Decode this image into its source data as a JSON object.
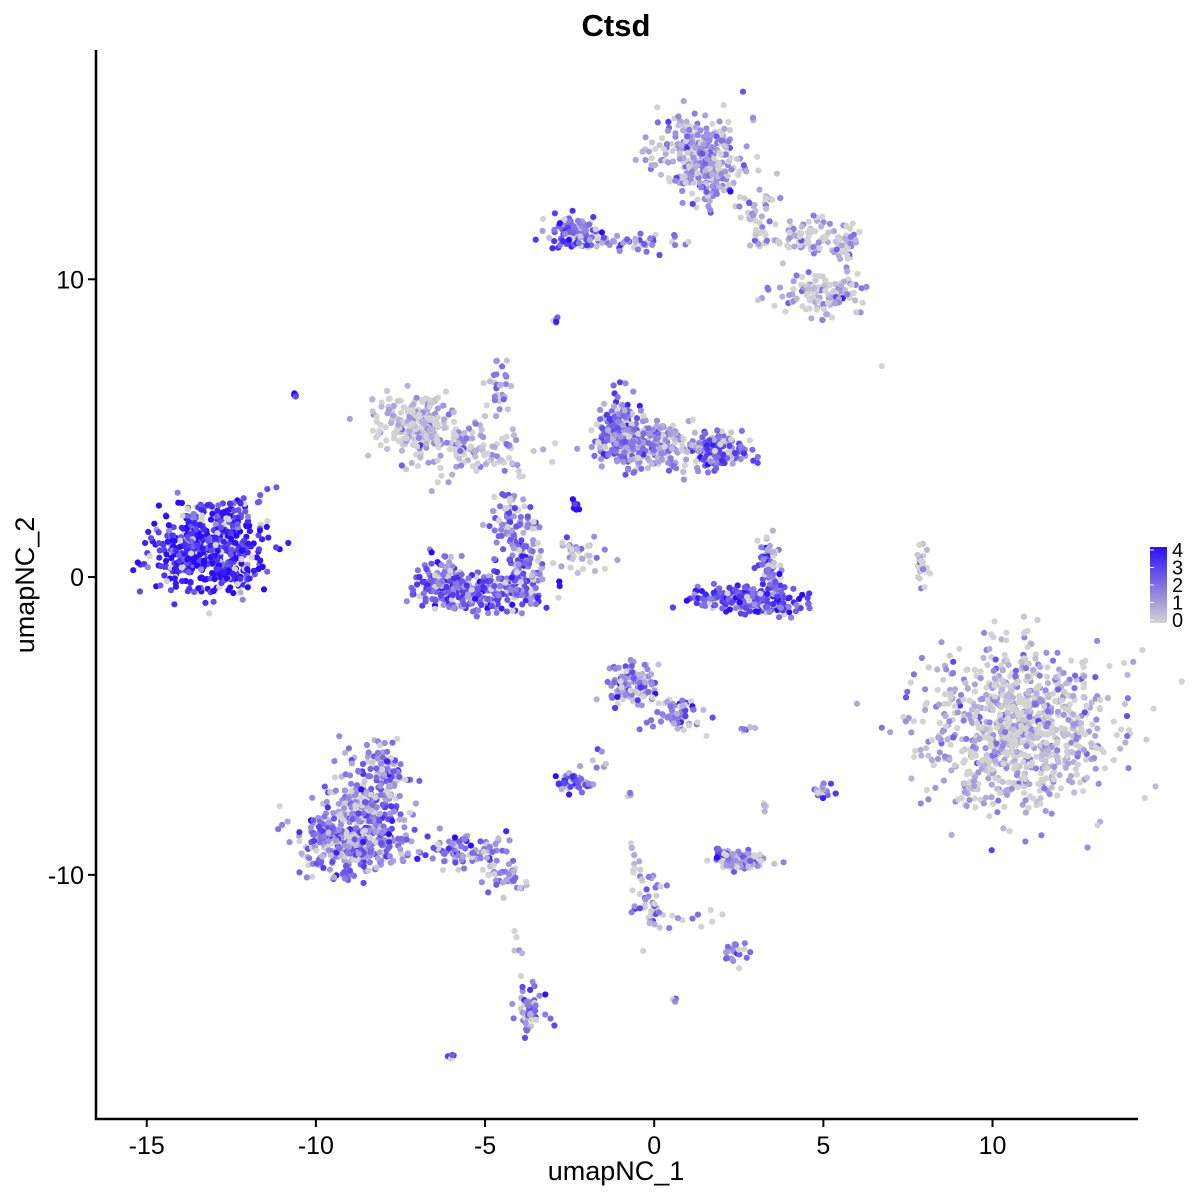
{
  "chart_data": {
    "type": "scatter",
    "title": "Ctsd",
    "xlabel": "umapNC_1",
    "ylabel": "umapNC_2",
    "xlim": [
      -16.5,
      14.3
    ],
    "ylim": [
      -18.2,
      17.7
    ],
    "x_ticks": [
      -15,
      -10,
      -5,
      0,
      5,
      10
    ],
    "x_tick_labels": [
      "-15",
      "-10",
      "-5",
      "0",
      "5",
      "10"
    ],
    "y_ticks": [
      -10,
      0,
      10
    ],
    "y_tick_labels": [
      "-10",
      "0",
      "10"
    ],
    "grid": false,
    "legend": {
      "placement": "right",
      "labels": [
        "4",
        "3",
        "2",
        "1",
        "0"
      ],
      "values": [
        4,
        3,
        2,
        1,
        0
      ],
      "low_color": "#d3d3d3",
      "high_color": "#2a0df5"
    },
    "clusters": [
      {
        "center": [
          -13.3,
          0.9
        ],
        "spread": [
          1.0,
          0.9
        ],
        "n": 480,
        "expression": 3.4
      },
      {
        "center": [
          -12.3,
          2.0
        ],
        "spread": [
          0.5,
          0.5
        ],
        "n": 60,
        "expression": 3.2
      },
      {
        "center": [
          -12.5,
          0.0
        ],
        "spread": [
          0.3,
          0.15
        ],
        "n": 25,
        "expression": 3.7
      },
      {
        "center": [
          -10.6,
          6.1
        ],
        "spread": [
          0.05,
          0.05
        ],
        "n": 4,
        "expression": 3.5
      },
      {
        "center": [
          -7.0,
          5.2
        ],
        "spread": [
          0.7,
          0.6
        ],
        "n": 220,
        "expression": 0.3
      },
      {
        "center": [
          -5.5,
          4.2
        ],
        "spread": [
          1.2,
          0.6
        ],
        "n": 120,
        "expression": 0.6
      },
      {
        "center": [
          -4.6,
          6.5
        ],
        "spread": [
          0.25,
          0.7
        ],
        "n": 30,
        "expression": 1.0
      },
      {
        "center": [
          -6.3,
          -0.1
        ],
        "spread": [
          0.5,
          0.5
        ],
        "n": 110,
        "expression": 2.5
      },
      {
        "center": [
          -5.1,
          -0.5
        ],
        "spread": [
          1.0,
          0.4
        ],
        "n": 250,
        "expression": 2.4
      },
      {
        "center": [
          -3.9,
          0.6
        ],
        "spread": [
          0.4,
          0.9
        ],
        "n": 120,
        "expression": 2.0
      },
      {
        "center": [
          -4.3,
          2.0
        ],
        "spread": [
          0.4,
          0.6
        ],
        "n": 50,
        "expression": 1.6
      },
      {
        "center": [
          -2.3,
          2.4
        ],
        "spread": [
          0.1,
          0.1
        ],
        "n": 10,
        "expression": 4.0
      },
      {
        "center": [
          -2.1,
          0.8
        ],
        "spread": [
          0.5,
          0.4
        ],
        "n": 35,
        "expression": 0.6
      },
      {
        "center": [
          -1.0,
          5.0
        ],
        "spread": [
          0.4,
          0.7
        ],
        "n": 190,
        "expression": 1.8
      },
      {
        "center": [
          0.0,
          4.4
        ],
        "spread": [
          1.0,
          0.5
        ],
        "n": 220,
        "expression": 1.3
      },
      {
        "center": [
          1.9,
          4.3
        ],
        "spread": [
          0.6,
          0.4
        ],
        "n": 140,
        "expression": 2.0
      },
      {
        "center": [
          2.1,
          -0.7
        ],
        "spread": [
          0.7,
          0.25
        ],
        "n": 90,
        "expression": 2.9
      },
      {
        "center": [
          3.4,
          -0.8
        ],
        "spread": [
          0.6,
          0.3
        ],
        "n": 110,
        "expression": 2.8
      },
      {
        "center": [
          3.4,
          0.5
        ],
        "spread": [
          0.25,
          0.6
        ],
        "n": 55,
        "expression": 2.2
      },
      {
        "center": [
          7.9,
          0.4
        ],
        "spread": [
          0.1,
          0.5
        ],
        "n": 25,
        "expression": 0.3
      },
      {
        "center": [
          10.7,
          -5.0
        ],
        "spread": [
          1.7,
          1.7
        ],
        "n": 900,
        "expression": 0.5
      },
      {
        "center": [
          1.3,
          14.2
        ],
        "spread": [
          0.8,
          0.8
        ],
        "n": 260,
        "expression": 1.0
      },
      {
        "center": [
          1.6,
          13.4
        ],
        "spread": [
          0.5,
          0.6
        ],
        "n": 90,
        "expression": 1.3
      },
      {
        "center": [
          3.0,
          12.2
        ],
        "spread": [
          0.4,
          0.8
        ],
        "n": 40,
        "expression": 0.4
      },
      {
        "center": [
          -2.4,
          11.6
        ],
        "spread": [
          0.5,
          0.35
        ],
        "n": 90,
        "expression": 2.2
      },
      {
        "center": [
          -0.6,
          11.2
        ],
        "spread": [
          0.9,
          0.2
        ],
        "n": 40,
        "expression": 1.8
      },
      {
        "center": [
          4.3,
          11.4
        ],
        "spread": [
          0.8,
          0.4
        ],
        "n": 80,
        "expression": 0.4
      },
      {
        "center": [
          5.6,
          11.3
        ],
        "spread": [
          0.3,
          0.5
        ],
        "n": 40,
        "expression": 0.8
      },
      {
        "center": [
          5.0,
          9.5
        ],
        "spread": [
          0.8,
          0.4
        ],
        "n": 120,
        "expression": 0.9
      },
      {
        "center": [
          -2.9,
          8.6
        ],
        "spread": [
          0.1,
          0.1
        ],
        "n": 6,
        "expression": 1.8
      },
      {
        "center": [
          6.7,
          7.1
        ],
        "spread": [
          0.02,
          0.02
        ],
        "n": 1,
        "expression": 0.1
      },
      {
        "center": [
          -8.5,
          -7.8
        ],
        "spread": [
          0.7,
          1.1
        ],
        "n": 250,
        "expression": 1.6
      },
      {
        "center": [
          -9.1,
          -9.0
        ],
        "spread": [
          0.9,
          0.6
        ],
        "n": 280,
        "expression": 1.7
      },
      {
        "center": [
          -7.9,
          -6.4
        ],
        "spread": [
          0.3,
          0.6
        ],
        "n": 60,
        "expression": 1.4
      },
      {
        "center": [
          -5.8,
          -9.2
        ],
        "spread": [
          0.9,
          0.4
        ],
        "n": 90,
        "expression": 1.8
      },
      {
        "center": [
          -4.4,
          -10.1
        ],
        "spread": [
          0.5,
          0.3
        ],
        "n": 35,
        "expression": 1.6
      },
      {
        "center": [
          -3.7,
          -14.6
        ],
        "spread": [
          0.3,
          0.5
        ],
        "n": 45,
        "expression": 1.8
      },
      {
        "center": [
          -4.0,
          -12.5
        ],
        "spread": [
          0.1,
          0.5
        ],
        "n": 6,
        "expression": 0.2
      },
      {
        "center": [
          -6.0,
          -16.1
        ],
        "spread": [
          0.1,
          0.05
        ],
        "n": 5,
        "expression": 1.5
      },
      {
        "center": [
          -0.6,
          -3.6
        ],
        "spread": [
          0.5,
          0.5
        ],
        "n": 100,
        "expression": 1.5
      },
      {
        "center": [
          0.7,
          -4.6
        ],
        "spread": [
          0.5,
          0.4
        ],
        "n": 60,
        "expression": 1.4
      },
      {
        "center": [
          -2.4,
          -6.9
        ],
        "spread": [
          0.3,
          0.2
        ],
        "n": 50,
        "expression": 2.5
      },
      {
        "center": [
          -1.6,
          -6.2
        ],
        "spread": [
          0.2,
          0.3
        ],
        "n": 6,
        "expression": 1.5
      },
      {
        "center": [
          -0.7,
          -7.3
        ],
        "spread": [
          0.1,
          0.1
        ],
        "n": 3,
        "expression": 0.2
      },
      {
        "center": [
          -0.2,
          -10.9
        ],
        "spread": [
          0.3,
          0.8
        ],
        "n": 40,
        "expression": 1.5
      },
      {
        "center": [
          -0.6,
          -9.6
        ],
        "spread": [
          0.1,
          0.4
        ],
        "n": 10,
        "expression": 0.4
      },
      {
        "center": [
          1.3,
          -11.6
        ],
        "spread": [
          0.6,
          0.2
        ],
        "n": 10,
        "expression": 1.0
      },
      {
        "center": [
          2.3,
          -12.6
        ],
        "spread": [
          0.3,
          0.3
        ],
        "n": 20,
        "expression": 1.8
      },
      {
        "center": [
          2.5,
          -9.5
        ],
        "spread": [
          0.5,
          0.25
        ],
        "n": 80,
        "expression": 1.2
      },
      {
        "center": [
          2.0,
          -9.3
        ],
        "spread": [
          0.15,
          0.1
        ],
        "n": 10,
        "expression": 3.0
      },
      {
        "center": [
          2.8,
          -5.1
        ],
        "spread": [
          0.2,
          0.05
        ],
        "n": 6,
        "expression": 1.5
      },
      {
        "center": [
          5.0,
          -7.2
        ],
        "spread": [
          0.2,
          0.2
        ],
        "n": 15,
        "expression": 2.0
      },
      {
        "center": [
          3.3,
          -7.7
        ],
        "spread": [
          0.1,
          0.1
        ],
        "n": 4,
        "expression": 0.8
      },
      {
        "center": [
          0.6,
          -14.2
        ],
        "spread": [
          0.05,
          0.05
        ],
        "n": 4,
        "expression": 1.5
      }
    ]
  }
}
